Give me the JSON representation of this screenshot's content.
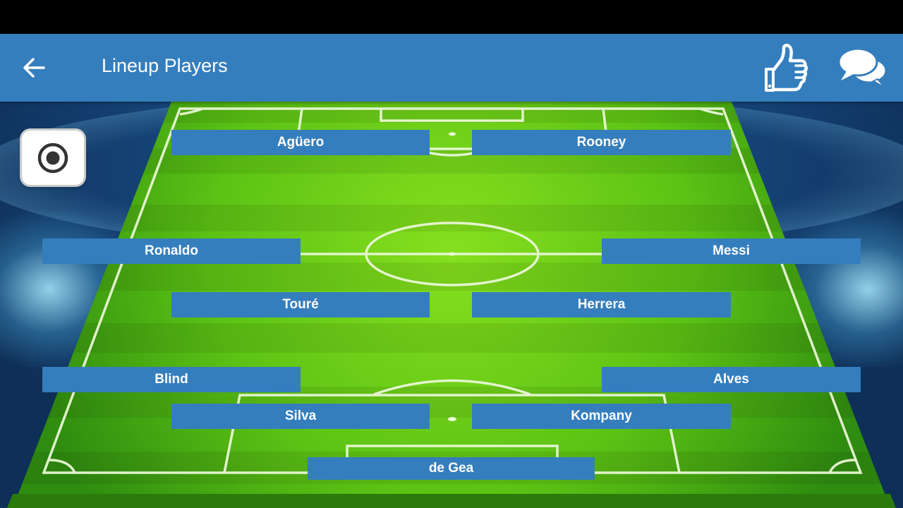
{
  "header": {
    "title": "Lineup Players",
    "back_icon": "arrow-left-icon",
    "like_icon": "thumbs-up-icon",
    "chat_icon": "chat-bubbles-icon"
  },
  "camera_button": {
    "icon": "camera-shutter-icon"
  },
  "players": [
    {
      "name": "Agüero",
      "role": "forward-left"
    },
    {
      "name": "Rooney",
      "role": "forward-right"
    },
    {
      "name": "Ronaldo",
      "role": "wing-left"
    },
    {
      "name": "Messi",
      "role": "wing-right"
    },
    {
      "name": "Touré",
      "role": "midfield-left"
    },
    {
      "name": "Herrera",
      "role": "midfield-right"
    },
    {
      "name": "Blind",
      "role": "fullback-left"
    },
    {
      "name": "Alves",
      "role": "fullback-right"
    },
    {
      "name": "Silva",
      "role": "centerback-left"
    },
    {
      "name": "Kompany",
      "role": "centerback-right"
    },
    {
      "name": "de Gea",
      "role": "goalkeeper"
    }
  ],
  "colors": {
    "appbar": "#357ebd",
    "player_tag": "#357ebd",
    "pitch_light": "#7bd81a",
    "pitch_dark": "#3f9a10"
  }
}
